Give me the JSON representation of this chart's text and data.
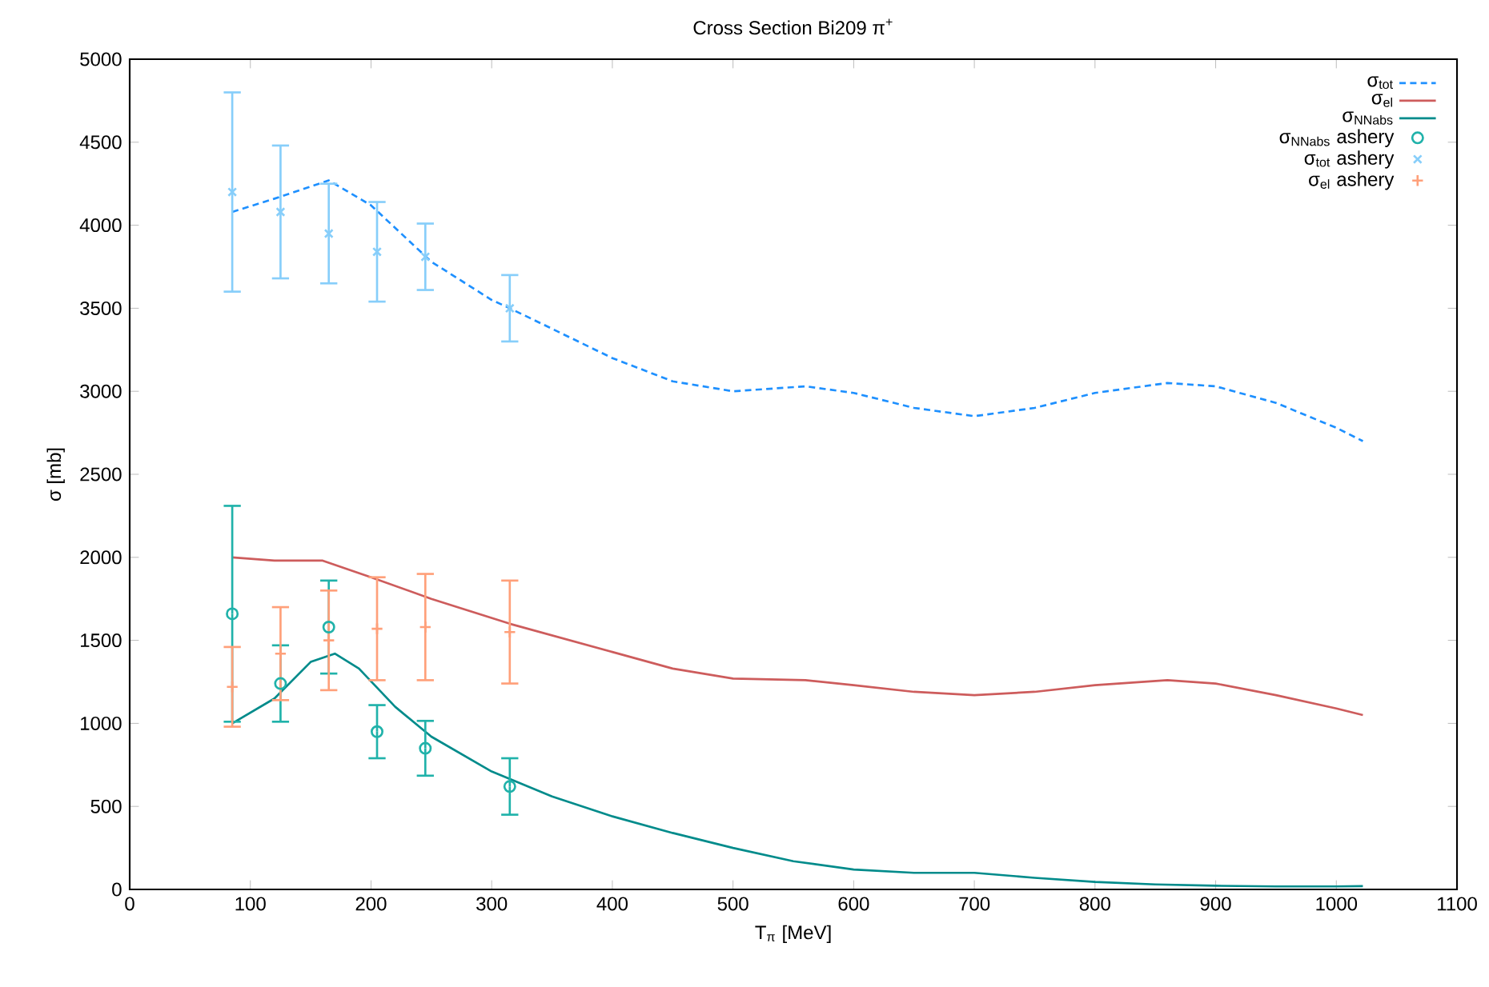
{
  "chart_data": {
    "type": "line",
    "title": "Cross Section Bi209 π$^{+}$",
    "xlabel": "T$_{π}$ [MeV]",
    "ylabel": "σ [mb]",
    "xlim": [
      0,
      1100
    ],
    "ylim": [
      0,
      5000
    ],
    "xticks": [
      0,
      100,
      200,
      300,
      400,
      500,
      600,
      700,
      800,
      900,
      1000,
      1100
    ],
    "yticks": [
      0,
      500,
      1000,
      1500,
      2000,
      2500,
      3000,
      3500,
      4000,
      4500,
      5000
    ],
    "grid": false,
    "legend": "top right",
    "series": [
      {
        "name": "σ$_{tot}$",
        "color": "#1e90ff",
        "line_style": "dashed",
        "marker": "none",
        "x": [
          85,
          120,
          165,
          200,
          250,
          300,
          315,
          400,
          450,
          500,
          560,
          600,
          650,
          700,
          750,
          800,
          860,
          900,
          950,
          1000,
          1022
        ],
        "values": [
          4080,
          4160,
          4270,
          4120,
          3780,
          3550,
          3500,
          3200,
          3060,
          3000,
          3030,
          2990,
          2900,
          2850,
          2900,
          2990,
          3050,
          3030,
          2930,
          2780,
          2700
        ]
      },
      {
        "name": "σ$_{el}$",
        "color": "#cd5c5c",
        "line_style": "solid",
        "marker": "none",
        "x": [
          85,
          120,
          160,
          200,
          250,
          315,
          400,
          450,
          500,
          560,
          600,
          650,
          700,
          750,
          800,
          860,
          900,
          950,
          1000,
          1022
        ],
        "values": [
          2000,
          1980,
          1980,
          1880,
          1750,
          1600,
          1430,
          1330,
          1270,
          1260,
          1230,
          1190,
          1170,
          1190,
          1230,
          1260,
          1240,
          1170,
          1090,
          1050
        ]
      },
      {
        "name": "σ$_{NNabs}$",
        "color": "#008b8b",
        "line_style": "solid",
        "marker": "none",
        "x": [
          85,
          120,
          150,
          170,
          190,
          220,
          250,
          300,
          350,
          400,
          450,
          500,
          550,
          600,
          650,
          700,
          750,
          800,
          850,
          900,
          950,
          1000,
          1022
        ],
        "values": [
          1000,
          1150,
          1370,
          1420,
          1330,
          1100,
          920,
          710,
          560,
          440,
          340,
          250,
          170,
          120,
          100,
          100,
          70,
          45,
          30,
          22,
          18,
          18,
          20
        ]
      },
      {
        "name": "σ$_{NNabs}$ ashery",
        "type": "scatter",
        "color": "#20b2aa",
        "marker": "circle",
        "x": [
          85,
          125,
          165,
          205,
          245,
          315
        ],
        "values": [
          1660,
          1240,
          1580,
          950,
          850,
          620
        ],
        "errors": [
          650,
          230,
          280,
          160,
          165,
          170
        ]
      },
      {
        "name": "σ$_{tot}$ ashery",
        "type": "scatter",
        "color": "#87cefa",
        "marker": "cross",
        "x": [
          85,
          125,
          165,
          205,
          245,
          315
        ],
        "values": [
          4200,
          4080,
          3950,
          3840,
          3810,
          3500
        ],
        "errors": [
          600,
          400,
          300,
          300,
          200,
          200
        ]
      },
      {
        "name": "σ$_{el}$ ashery",
        "type": "scatter",
        "color": "#ffa07a",
        "marker": "plus",
        "x": [
          85,
          125,
          165,
          205,
          245,
          315
        ],
        "values": [
          1220,
          1420,
          1500,
          1570,
          1580,
          1550
        ],
        "errors": [
          240,
          280,
          300,
          310,
          320,
          310
        ]
      }
    ]
  }
}
